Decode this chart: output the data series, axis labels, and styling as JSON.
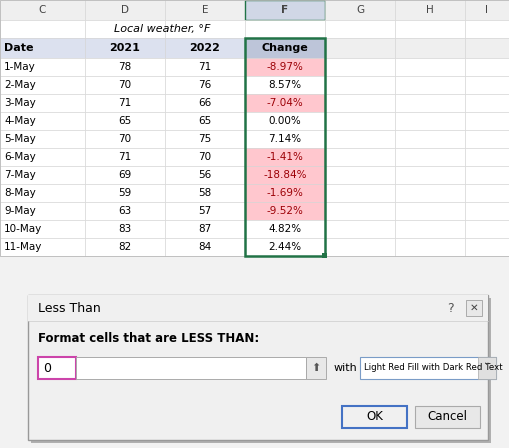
{
  "title": "Local weather, °F",
  "col_headers": [
    "Date",
    "2021",
    "2022",
    "Change"
  ],
  "rows": [
    [
      "1-May",
      "78",
      "71",
      "-8.97%"
    ],
    [
      "2-May",
      "70",
      "76",
      "8.57%"
    ],
    [
      "3-May",
      "71",
      "66",
      "-7.04%"
    ],
    [
      "4-May",
      "65",
      "65",
      "0.00%"
    ],
    [
      "5-May",
      "70",
      "75",
      "7.14%"
    ],
    [
      "6-May",
      "71",
      "70",
      "-1.41%"
    ],
    [
      "7-May",
      "69",
      "56",
      "-18.84%"
    ],
    [
      "8-May",
      "59",
      "58",
      "-1.69%"
    ],
    [
      "9-May",
      "63",
      "57",
      "-9.52%"
    ],
    [
      "10-May",
      "83",
      "87",
      "4.82%"
    ],
    [
      "11-May",
      "82",
      "84",
      "2.44%"
    ]
  ],
  "change_negative": [
    true,
    false,
    true,
    false,
    false,
    true,
    true,
    true,
    true,
    false,
    false
  ],
  "col_letters": [
    "C",
    "D",
    "E",
    "F",
    "G",
    "H",
    "I"
  ],
  "neg_fill": "#ffc7ce",
  "neg_text": "#9c0006",
  "grid_color": "#d4d4d4",
  "col_header_bg": "#dce1ef",
  "selected_col_header_bg": "#bdc5d9",
  "data_row_bg": "#ffffff",
  "letter_row_bg": "#efefef",
  "selected_letter_bg": "#d0d7e6",
  "dialog_bg": "#f0f0f0",
  "input_border": "#cc44aa",
  "ok_border": "#4472c4"
}
